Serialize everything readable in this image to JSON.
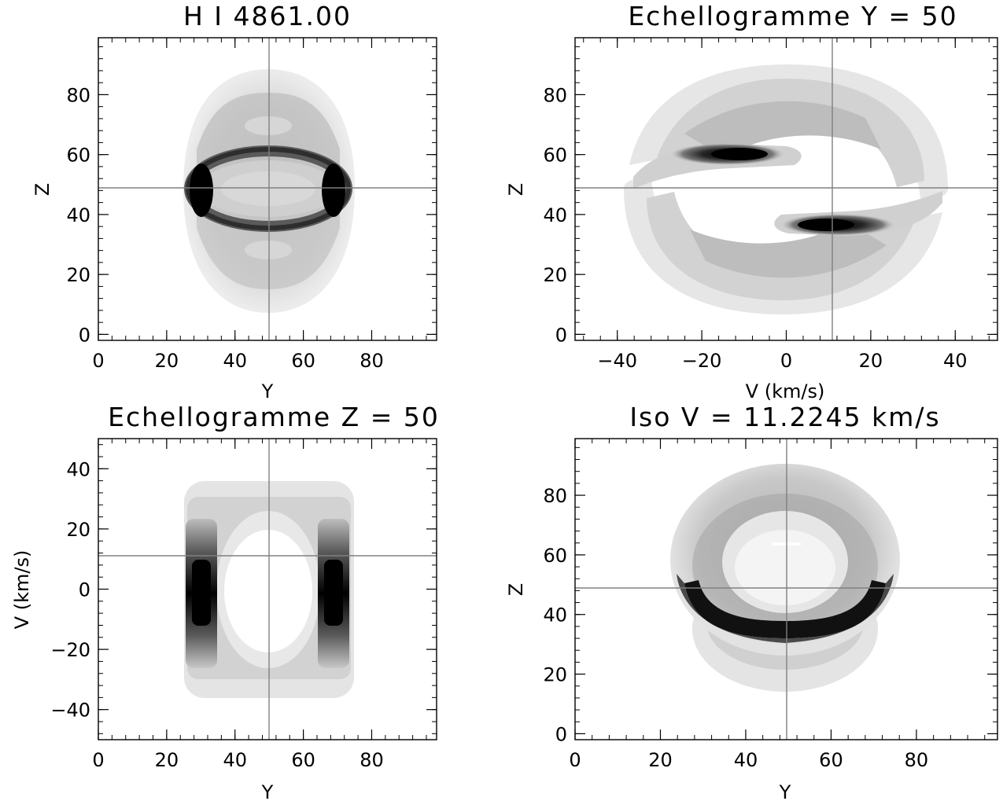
{
  "chart_data": [
    {
      "type": "heatmap",
      "title": "H I    4861.00",
      "xlabel": "Y",
      "ylabel": "Z",
      "xlim": [
        0,
        99
      ],
      "ylim": [
        -2,
        99
      ],
      "xticks": [
        "0",
        "20",
        "40",
        "60",
        "80"
      ],
      "xtick_values": [
        0,
        20,
        40,
        60,
        80
      ],
      "yticks": [
        "0",
        "20",
        "40",
        "60",
        "80"
      ],
      "ytick_values": [
        0,
        20,
        40,
        60,
        80
      ],
      "crosshair": {
        "x": 50,
        "y": 50
      },
      "colormap": "grayscale-inverted",
      "colors": {
        "background": "#ffffff",
        "axes": "#000000",
        "crosshair": "#808080"
      }
    },
    {
      "type": "heatmap",
      "title": "Echellogramme Y = 50",
      "xlabel": "V (km/s)",
      "ylabel": "Z",
      "xlim": [
        -50,
        50
      ],
      "ylim": [
        -2,
        99
      ],
      "xticks": [
        "−40",
        "−20",
        "0",
        "20",
        "40"
      ],
      "xtick_values": [
        -40,
        -20,
        0,
        20,
        40
      ],
      "yticks": [
        "0",
        "20",
        "40",
        "60",
        "80"
      ],
      "ytick_values": [
        0,
        20,
        40,
        60,
        80
      ],
      "crosshair": {
        "x": 11.2245,
        "y": 50
      },
      "colormap": "grayscale-inverted",
      "colors": {
        "background": "#ffffff",
        "axes": "#000000",
        "crosshair": "#808080"
      }
    },
    {
      "type": "heatmap",
      "title": "Echellogramme Z = 50",
      "xlabel": "Y",
      "ylabel": "V (km/s)",
      "xlim": [
        0,
        99
      ],
      "ylim": [
        -50,
        50
      ],
      "xticks": [
        "0",
        "20",
        "40",
        "60",
        "80"
      ],
      "xtick_values": [
        0,
        20,
        40,
        60,
        80
      ],
      "yticks": [
        "40",
        "20",
        "0",
        "−20",
        "−40"
      ],
      "ytick_values": [
        40,
        20,
        0,
        -20,
        -40
      ],
      "crosshair": {
        "x": 50,
        "y": 11.2245
      },
      "colormap": "grayscale-inverted",
      "colors": {
        "background": "#ffffff",
        "axes": "#000000",
        "crosshair": "#808080"
      }
    },
    {
      "type": "heatmap",
      "title": "Iso V = 11.2245 km/s",
      "xlabel": "Y",
      "ylabel": "Z",
      "xlim": [
        0,
        99
      ],
      "ylim": [
        -2,
        99
      ],
      "xticks": [
        "0",
        "20",
        "40",
        "60",
        "80"
      ],
      "xtick_values": [
        0,
        20,
        40,
        60,
        80
      ],
      "yticks": [
        "0",
        "20",
        "40",
        "60",
        "80"
      ],
      "ytick_values": [
        0,
        20,
        40,
        60,
        80
      ],
      "crosshair": {
        "x": 50,
        "y": 50
      },
      "colormap": "grayscale-inverted",
      "colors": {
        "background": "#ffffff",
        "axes": "#000000",
        "crosshair": "#808080"
      }
    }
  ]
}
